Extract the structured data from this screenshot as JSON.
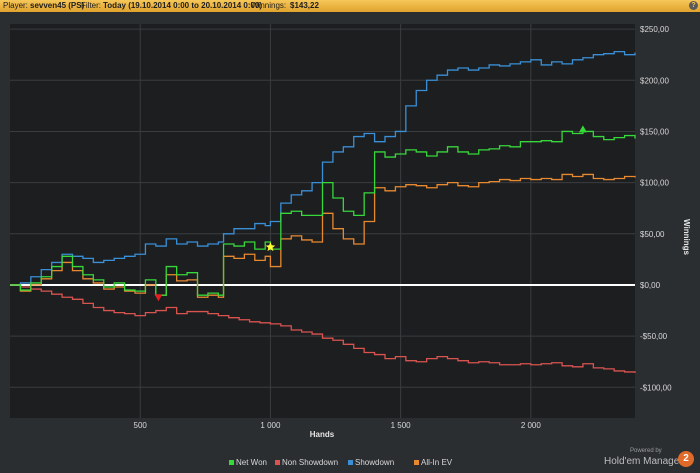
{
  "header": {
    "player_label": "Player:",
    "player_value": "sevven45 (PS)",
    "filter_label": "Filter:",
    "filter_value": "Today (19.10.2014 0:00 to 20.10.2014 0:00)",
    "winnings_label": "Winnings:",
    "winnings_value": "$143,22",
    "help_icon": "question-icon"
  },
  "branding": {
    "powered_by": "Powered by",
    "product": "Hold'em Manager",
    "badge": "2"
  },
  "colors": {
    "net_won": "#37d83a",
    "non_showdown": "#d9534f",
    "showdown": "#3a8fd6",
    "all_in_ev": "#e8892f",
    "zero_line": "#ffffff"
  },
  "chart_data": {
    "type": "line",
    "title": "",
    "xlabel": "Hands",
    "ylabel": "Winnings",
    "xlim": [
      0,
      2400
    ],
    "ylim": [
      -130,
      255
    ],
    "x_ticks": [
      500,
      1000,
      1500,
      2000
    ],
    "x_tick_labels": [
      "500",
      "1 000",
      "1 500",
      "2 000"
    ],
    "y_ticks": [
      250,
      200,
      150,
      100,
      50,
      0,
      -50,
      -100
    ],
    "y_tick_labels": [
      "$250,00",
      "$200,00",
      "$150,00",
      "$100,00",
      "$50,00",
      "$0,00",
      "-$50,00",
      "-$100,00"
    ],
    "grid": true,
    "legend_position": "bottom",
    "series": [
      {
        "name": "Net Won",
        "color": "#37d83a",
        "x": [
          0,
          40,
          80,
          120,
          160,
          200,
          240,
          280,
          320,
          360,
          400,
          440,
          480,
          520,
          560,
          600,
          640,
          680,
          720,
          760,
          800,
          820,
          860,
          900,
          940,
          980,
          1000,
          1040,
          1080,
          1120,
          1160,
          1200,
          1240,
          1280,
          1320,
          1360,
          1400,
          1440,
          1480,
          1520,
          1560,
          1600,
          1640,
          1680,
          1720,
          1760,
          1800,
          1840,
          1880,
          1920,
          1960,
          2000,
          2040,
          2080,
          2120,
          2160,
          2200,
          2240,
          2280,
          2320,
          2360,
          2400
        ],
        "y": [
          0,
          -5,
          2,
          8,
          18,
          28,
          18,
          10,
          5,
          -2,
          2,
          -5,
          -6,
          5,
          -10,
          18,
          10,
          12,
          -10,
          -8,
          -10,
          40,
          38,
          42,
          35,
          42,
          35,
          70,
          72,
          68,
          68,
          100,
          85,
          72,
          68,
          90,
          130,
          125,
          128,
          132,
          130,
          126,
          130,
          135,
          130,
          128,
          132,
          133,
          136,
          135,
          140,
          140,
          141,
          140,
          150,
          148,
          150,
          145,
          142,
          144,
          146,
          143
        ]
      },
      {
        "name": "Non Showdown",
        "color": "#d9534f",
        "x": [
          0,
          40,
          80,
          120,
          160,
          200,
          240,
          280,
          320,
          360,
          400,
          440,
          480,
          520,
          560,
          600,
          640,
          680,
          720,
          760,
          800,
          840,
          880,
          920,
          960,
          1000,
          1040,
          1080,
          1120,
          1160,
          1200,
          1240,
          1280,
          1320,
          1360,
          1400,
          1440,
          1480,
          1520,
          1560,
          1600,
          1640,
          1680,
          1720,
          1760,
          1800,
          1840,
          1880,
          1920,
          1960,
          2000,
          2040,
          2080,
          2120,
          2160,
          2200,
          2240,
          2280,
          2320,
          2360,
          2400
        ],
        "y": [
          0,
          -2,
          -4,
          -6,
          -9,
          -12,
          -14,
          -18,
          -22,
          -25,
          -27,
          -28,
          -30,
          -27,
          -25,
          -22,
          -28,
          -26,
          -26,
          -28,
          -30,
          -32,
          -34,
          -36,
          -37,
          -38,
          -40,
          -44,
          -46,
          -48,
          -52,
          -54,
          -58,
          -62,
          -66,
          -68,
          -72,
          -70,
          -74,
          -75,
          -72,
          -70,
          -72,
          -74,
          -76,
          -75,
          -76,
          -78,
          -78,
          -77,
          -78,
          -77,
          -76,
          -79,
          -80,
          -77,
          -81,
          -82,
          -84,
          -85,
          -86
        ]
      },
      {
        "name": "Showdown",
        "color": "#3a8fd6",
        "x": [
          0,
          40,
          80,
          120,
          160,
          200,
          240,
          280,
          320,
          360,
          400,
          440,
          480,
          520,
          560,
          600,
          640,
          680,
          720,
          760,
          800,
          820,
          860,
          900,
          940,
          980,
          1000,
          1040,
          1080,
          1120,
          1160,
          1200,
          1240,
          1280,
          1320,
          1360,
          1400,
          1440,
          1480,
          1520,
          1560,
          1600,
          1640,
          1680,
          1720,
          1760,
          1800,
          1840,
          1880,
          1920,
          1960,
          2000,
          2040,
          2080,
          2120,
          2160,
          2200,
          2240,
          2280,
          2320,
          2360,
          2400
        ],
        "y": [
          0,
          2,
          8,
          15,
          22,
          30,
          28,
          26,
          22,
          24,
          26,
          28,
          30,
          40,
          38,
          45,
          40,
          42,
          38,
          40,
          42,
          50,
          55,
          55,
          60,
          58,
          62,
          80,
          88,
          92,
          100,
          120,
          130,
          135,
          145,
          148,
          140,
          145,
          150,
          175,
          190,
          200,
          205,
          210,
          212,
          210,
          212,
          215,
          214,
          216,
          218,
          220,
          215,
          218,
          216,
          220,
          222,
          225,
          226,
          228,
          225,
          227
        ]
      },
      {
        "name": "All-In EV",
        "color": "#e8892f",
        "x": [
          0,
          40,
          80,
          120,
          160,
          200,
          240,
          280,
          320,
          360,
          400,
          440,
          480,
          520,
          560,
          600,
          640,
          680,
          720,
          760,
          800,
          820,
          860,
          900,
          940,
          980,
          1000,
          1040,
          1080,
          1120,
          1160,
          1200,
          1240,
          1280,
          1320,
          1360,
          1400,
          1440,
          1480,
          1520,
          1560,
          1600,
          1640,
          1680,
          1720,
          1760,
          1800,
          1840,
          1880,
          1920,
          1960,
          2000,
          2040,
          2080,
          2120,
          2160,
          2200,
          2240,
          2280,
          2320,
          2360,
          2400
        ],
        "y": [
          0,
          -6,
          0,
          6,
          14,
          22,
          14,
          6,
          2,
          -4,
          -2,
          -6,
          -8,
          0,
          -10,
          10,
          4,
          5,
          -12,
          -10,
          -12,
          28,
          26,
          30,
          24,
          28,
          18,
          45,
          48,
          44,
          42,
          70,
          55,
          45,
          40,
          62,
          95,
          92,
          96,
          98,
          97,
          95,
          98,
          100,
          97,
          96,
          100,
          101,
          103,
          102,
          104,
          103,
          104,
          103,
          108,
          106,
          108,
          104,
          103,
          104,
          106,
          105
        ]
      }
    ],
    "markers": [
      {
        "series": "Net Won",
        "x": 1000,
        "y": 37,
        "shape": "star",
        "color": "#ffff33"
      },
      {
        "series": "Non Showdown",
        "x": 570,
        "y": -12,
        "shape": "triangle-down",
        "color": "#e02020"
      },
      {
        "series": "Net Won",
        "x": 2200,
        "y": 152,
        "shape": "triangle-up",
        "color": "#37d83a"
      }
    ]
  }
}
